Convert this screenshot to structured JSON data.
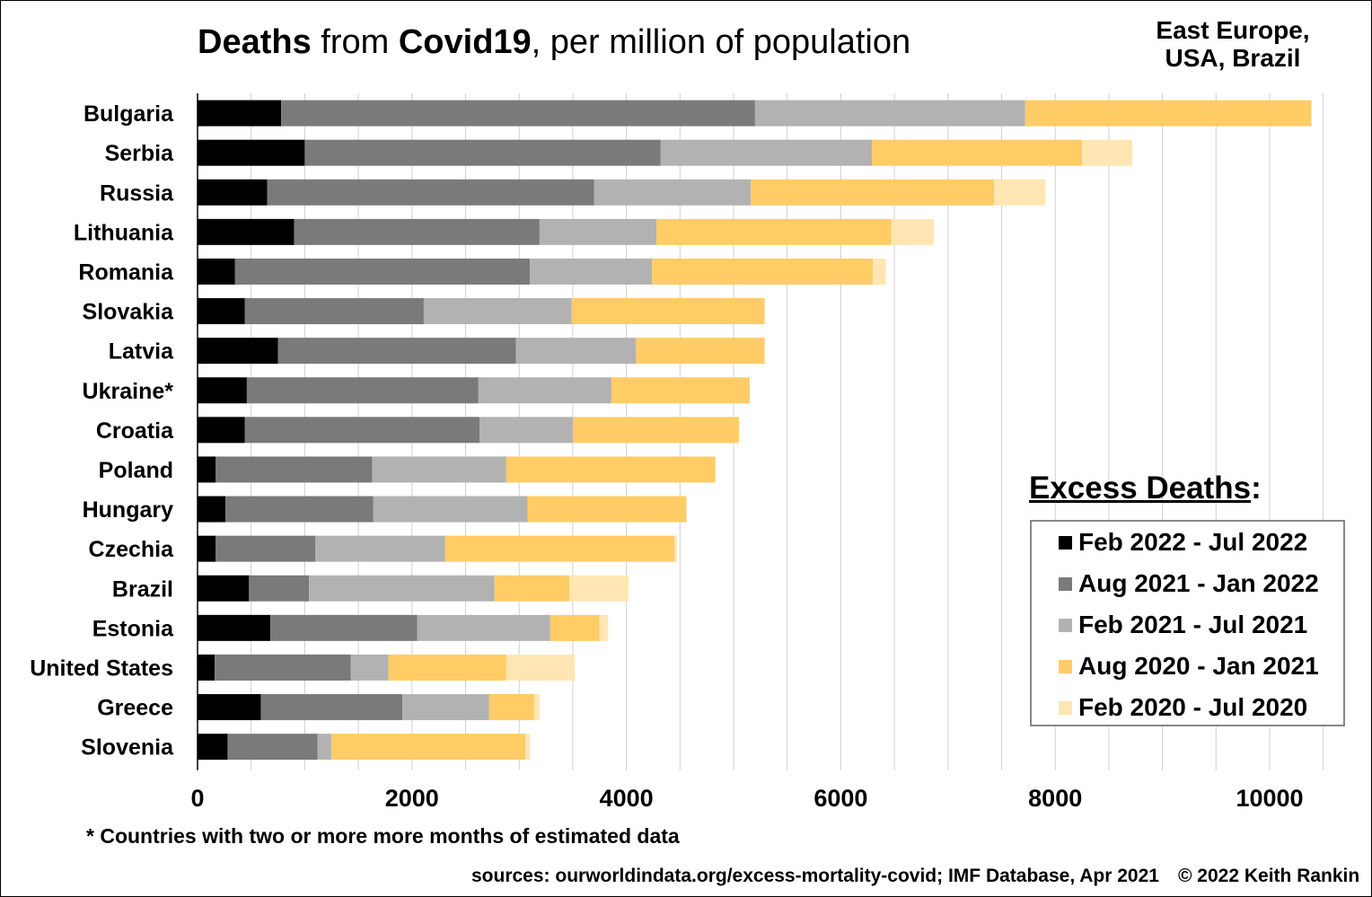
{
  "title_parts": {
    "p1": "Deaths",
    "p2": " from ",
    "p3": "Covid19",
    "p4": ", per million of population"
  },
  "subtitle": {
    "line1": "East Europe,",
    "line2": "USA, Brazil"
  },
  "legend": {
    "title_main": "Excess Deaths",
    "title_suffix": ":"
  },
  "footnote": "* Countries with two or more more months of estimated data",
  "sources": "sources: ourworldindata.org/excess-mortality-covid; IMF Database, Apr 2021",
  "copyright": "© 2022 Keith Rankin",
  "chart_data": {
    "type": "bar",
    "orientation": "horizontal",
    "stacked": true,
    "title": "Deaths from Covid19, per million of population",
    "xlabel": "",
    "ylabel": "",
    "xlim": [
      0,
      10500
    ],
    "xticks": [
      0,
      2000,
      4000,
      6000,
      8000,
      10000
    ],
    "grid": "vertical",
    "legend_position": "right",
    "categories": [
      "Bulgaria",
      "Serbia",
      "Russia",
      "Lithuania",
      "Romania",
      "Slovakia",
      "Latvia",
      "Ukraine*",
      "Croatia",
      "Poland",
      "Hungary",
      "Czechia",
      "Brazil",
      "Estonia",
      "United States",
      "Greece",
      "Slovenia"
    ],
    "series": [
      {
        "name": "Feb 2022 - Jul 2022",
        "color": "#000000",
        "values": [
          780,
          1000,
          650,
          900,
          350,
          440,
          750,
          460,
          440,
          170,
          260,
          170,
          480,
          680,
          160,
          590,
          280
        ]
      },
      {
        "name": "Aug 2021 - Jan 2022",
        "color": "#7a7a7a",
        "values": [
          4420,
          3320,
          3050,
          2290,
          2750,
          1670,
          2220,
          2160,
          2190,
          1460,
          1380,
          930,
          560,
          1370,
          1270,
          1320,
          840
        ]
      },
      {
        "name": "Feb 2021 - Jul 2021",
        "color": "#b2b2b2",
        "values": [
          2520,
          1970,
          1460,
          1090,
          1140,
          1380,
          1120,
          1240,
          870,
          1250,
          1440,
          1210,
          1730,
          1240,
          350,
          810,
          130
        ]
      },
      {
        "name": "Aug 2020 - Jan 2021",
        "color": "#ffcc66",
        "values": [
          2670,
          1960,
          2270,
          2190,
          2060,
          1800,
          1200,
          1290,
          1550,
          1950,
          1480,
          2140,
          700,
          460,
          1100,
          420,
          1810
        ]
      },
      {
        "name": "Feb 2020 - Jul 2020",
        "color": "#ffe6b3",
        "values": [
          0,
          470,
          480,
          400,
          120,
          0,
          0,
          0,
          0,
          0,
          0,
          20,
          550,
          80,
          640,
          50,
          40
        ]
      }
    ]
  }
}
